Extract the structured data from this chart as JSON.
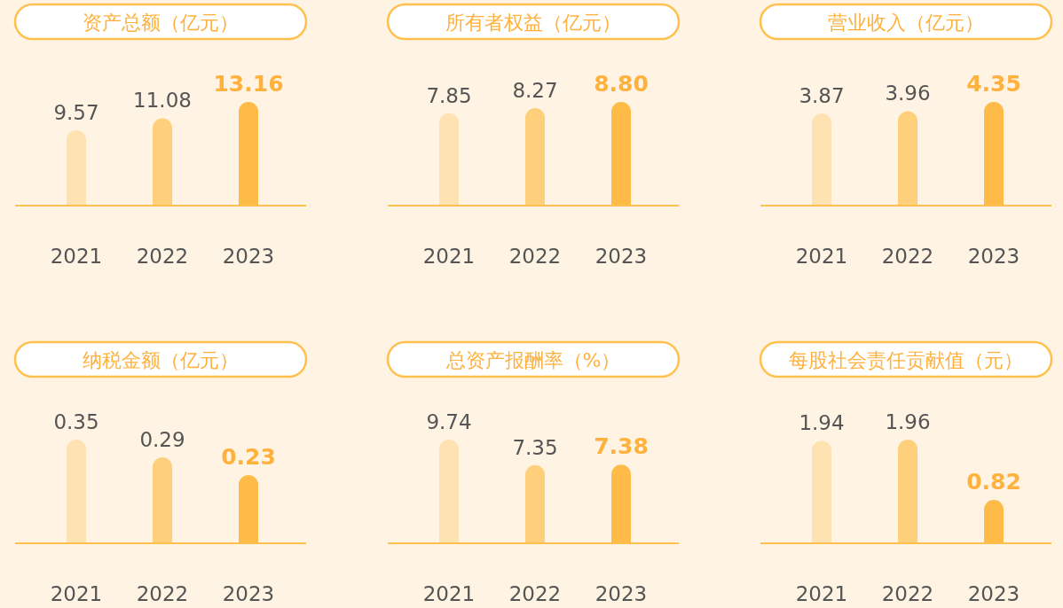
{
  "chart_data": [
    {
      "type": "bar",
      "title": "资产总额（亿元）",
      "categories": [
        "2021",
        "2022",
        "2023"
      ],
      "values": [
        9.57,
        11.08,
        13.16
      ],
      "value_labels": [
        "9.57",
        "11.08",
        "13.16"
      ],
      "colors": [
        "#ffe2b2",
        "#ffd07c",
        "#ffbb48"
      ]
    },
    {
      "type": "bar",
      "title": "所有者权益（亿元）",
      "categories": [
        "2021",
        "2022",
        "2023"
      ],
      "values": [
        7.85,
        8.27,
        8.8
      ],
      "value_labels": [
        "7.85",
        "8.27",
        "8.80"
      ],
      "colors": [
        "#ffe2b2",
        "#ffd07c",
        "#ffbb48"
      ]
    },
    {
      "type": "bar",
      "title": "营业收入（亿元）",
      "categories": [
        "2021",
        "2022",
        "2023"
      ],
      "values": [
        3.87,
        3.96,
        4.35
      ],
      "value_labels": [
        "3.87",
        "3.96",
        "4.35"
      ],
      "colors": [
        "#ffe2b2",
        "#ffd07c",
        "#ffbb48"
      ]
    },
    {
      "type": "bar",
      "title": "纳税金额（亿元）",
      "categories": [
        "2021",
        "2022",
        "2023"
      ],
      "values": [
        0.35,
        0.29,
        0.23
      ],
      "value_labels": [
        "0.35",
        "0.29",
        "0.23"
      ],
      "colors": [
        "#ffe2b2",
        "#ffd07c",
        "#ffbb48"
      ]
    },
    {
      "type": "bar",
      "title": "总资产报酬率（%）",
      "categories": [
        "2021",
        "2022",
        "2023"
      ],
      "values": [
        9.74,
        7.35,
        7.38
      ],
      "value_labels": [
        "9.74",
        "7.35",
        "7.38"
      ],
      "colors": [
        "#ffe2b2",
        "#ffd07c",
        "#ffbb48"
      ]
    },
    {
      "type": "bar",
      "title": "每股社会责任贡献值（元）",
      "categories": [
        "2021",
        "2022",
        "2023"
      ],
      "values": [
        1.94,
        1.96,
        0.82
      ],
      "value_labels": [
        "1.94",
        "1.96",
        "0.82"
      ],
      "colors": [
        "#ffe2b2",
        "#ffd07c",
        "#ffbb48"
      ]
    }
  ]
}
